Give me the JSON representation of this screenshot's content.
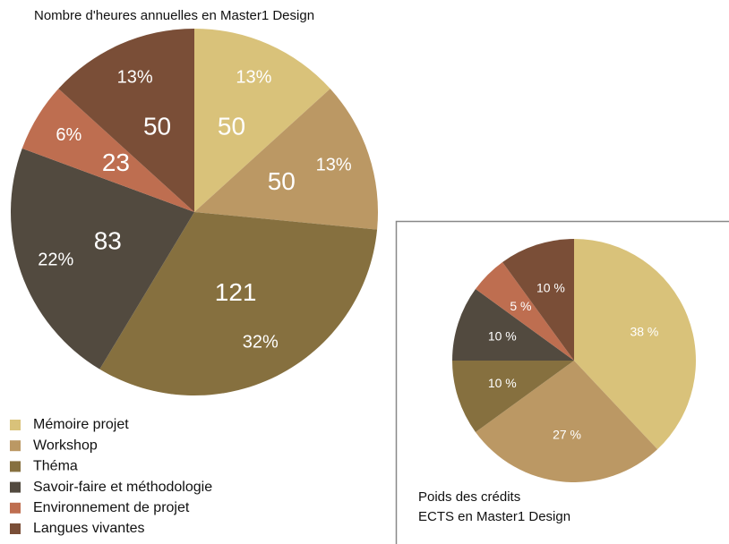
{
  "chart_data": [
    {
      "type": "pie",
      "title": "Nombre d'heures annuelles en Master1 Design",
      "categories": [
        "Mémoire projet",
        "Workshop",
        "Théma",
        "Savoir-faire et méthodologie",
        "Environnement de projet",
        "Langues vivantes"
      ],
      "values": [
        50,
        50,
        121,
        83,
        23,
        50
      ],
      "percents": [
        13,
        13,
        32,
        22,
        6,
        13
      ],
      "percent_labels": [
        "13%",
        "13%",
        "32%",
        "22%",
        "6%",
        "13%"
      ],
      "colors": [
        "#d9c27a",
        "#bb9864",
        "#86703f",
        "#524a3f",
        "#be6e50",
        "#7a4e37"
      ],
      "legend": "bottom-left"
    },
    {
      "type": "pie",
      "title_lines": [
        "Poids des crédits",
        "ECTS en Master1 Design"
      ],
      "values": [
        38,
        27,
        10,
        10,
        5,
        10
      ],
      "value_labels": [
        "38 %",
        "27 %",
        "10 %",
        "10 %",
        "5 %",
        "10 %"
      ],
      "colors": [
        "#d9c27a",
        "#bb9864",
        "#86703f",
        "#524a3f",
        "#be6e50",
        "#7a4e37"
      ]
    }
  ]
}
